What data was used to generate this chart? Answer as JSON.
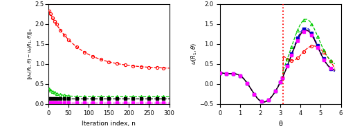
{
  "left": {
    "xlabel": "Iteration index, n",
    "xlim": [
      0,
      300
    ],
    "ylim": [
      0,
      2.5
    ],
    "yticks": [
      0,
      0.5,
      1.0,
      1.5,
      2.0,
      2.5
    ],
    "xticks": [
      0,
      50,
      100,
      150,
      200,
      250,
      300
    ]
  },
  "right": {
    "xlabel": "θ",
    "xlim": [
      0,
      6.0
    ],
    "ylim": [
      -0.5,
      2.0
    ],
    "yticks": [
      -0.5,
      0,
      0.5,
      1.0,
      1.5,
      2.0
    ],
    "xticks": [
      0,
      1,
      2,
      3,
      4,
      5,
      6
    ],
    "vline": 3.14159265
  },
  "colors": {
    "red": "#ff0000",
    "green": "#00cc00",
    "black": "#000000",
    "magenta": "#ff00ff",
    "blue": "#0000bb",
    "darkblue": "#0000cc"
  },
  "conv": {
    "red_start": 2.35,
    "red_end": 0.87,
    "red_decay": 0.014,
    "green_start": 0.38,
    "green_end": 0.175,
    "green_decay": 0.045,
    "black_val": 0.135,
    "magenta_val": 0.025
  }
}
